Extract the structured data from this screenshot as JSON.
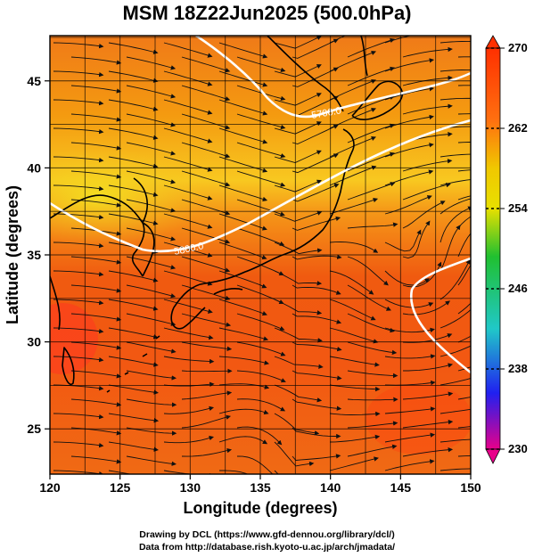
{
  "title": "MSM 18Z22Jun2025 (500.0hPa)",
  "xlabel": "Longitude (degrees)",
  "ylabel": "Latitude  (degrees)",
  "x_ticks": [
    "120",
    "125",
    "130",
    "135",
    "140",
    "145",
    "150"
  ],
  "y_ticks": [
    "25",
    "30",
    "35",
    "40",
    "45"
  ],
  "colorbar_ticks": [
    "270",
    "262",
    "254",
    "246",
    "238",
    "230"
  ],
  "contour_labels": [
    "5700.0",
    "5800.0"
  ],
  "credits": {
    "line1": "Drawing by DCL (https://www.gfd-dennou.org/library/dcl/)",
    "line2": "Data from http://database.rish.kyoto-u.ac.jp/arch/jmadata/"
  },
  "chart_data": {
    "type": "heatmap",
    "title": "MSM 18Z22Jun2025 (500.0hPa)",
    "xlabel": "Longitude (degrees)",
    "ylabel": "Latitude  (degrees)",
    "xlim": [
      120,
      150
    ],
    "ylim": [
      22.4,
      47.6
    ],
    "x_ticks": [
      120,
      125,
      130,
      135,
      140,
      145,
      150
    ],
    "y_ticks": [
      25,
      30,
      35,
      40,
      45
    ],
    "colorbar": {
      "range": [
        230,
        270
      ],
      "ticks": [
        270,
        262,
        254,
        246,
        238,
        230
      ],
      "colors": [
        "#e8008a",
        "#3030ff",
        "#20c8c8",
        "#20c030",
        "#e8e000",
        "#ff7010",
        "#ff3000"
      ]
    },
    "contours": [
      {
        "label": "5700.0",
        "lon": 139.0,
        "lat": 43.2
      },
      {
        "label": "5800.0",
        "lon": 127.5,
        "lat": 36.7
      }
    ],
    "grid": true
  }
}
